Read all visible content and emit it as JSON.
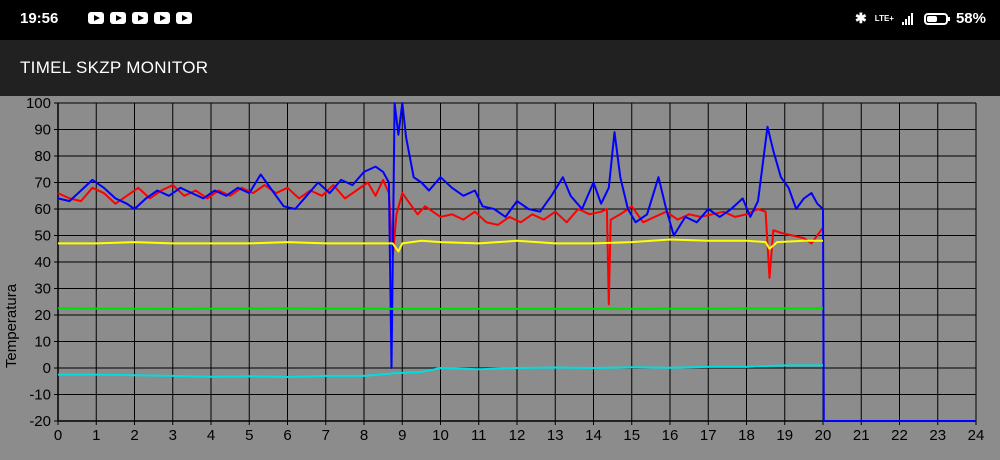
{
  "status_bar": {
    "time": "19:56",
    "notification_icons": [
      "youtube-icon",
      "youtube-icon",
      "youtube-icon",
      "youtube-icon",
      "youtube-icon"
    ],
    "network": "LTE+",
    "battery": "58%",
    "battery_level": 0.58
  },
  "app_bar": {
    "title": "TIMEL SKZP MONITOR"
  },
  "chart_data": {
    "type": "line",
    "title": "",
    "xlabel": "",
    "ylabel": "Temperatura",
    "xlim": [
      0,
      24
    ],
    "ylim": [
      -20,
      100
    ],
    "xticks": [
      0,
      1,
      2,
      3,
      4,
      5,
      6,
      7,
      8,
      9,
      10,
      11,
      12,
      13,
      14,
      15,
      16,
      17,
      18,
      19,
      20,
      21,
      22,
      23,
      24
    ],
    "yticks": [
      -20,
      -10,
      0,
      10,
      20,
      30,
      40,
      50,
      60,
      70,
      80,
      90,
      100
    ],
    "grid": true,
    "background": "#8c8c8c",
    "series": [
      {
        "color": "#ff0000",
        "points": [
          [
            0,
            66
          ],
          [
            0.3,
            64
          ],
          [
            0.6,
            63
          ],
          [
            0.9,
            68
          ],
          [
            1.2,
            66
          ],
          [
            1.5,
            62
          ],
          [
            1.8,
            65
          ],
          [
            2.1,
            68
          ],
          [
            2.4,
            64
          ],
          [
            2.7,
            67
          ],
          [
            3.0,
            69
          ],
          [
            3.3,
            65
          ],
          [
            3.6,
            67
          ],
          [
            3.9,
            64
          ],
          [
            4.2,
            67
          ],
          [
            4.5,
            65
          ],
          [
            4.8,
            68
          ],
          [
            5.1,
            66
          ],
          [
            5.4,
            69
          ],
          [
            5.7,
            66
          ],
          [
            6.0,
            68
          ],
          [
            6.3,
            64
          ],
          [
            6.6,
            67
          ],
          [
            6.9,
            65
          ],
          [
            7.2,
            69
          ],
          [
            7.5,
            64
          ],
          [
            7.8,
            67
          ],
          [
            8.1,
            70
          ],
          [
            8.3,
            65
          ],
          [
            8.5,
            71
          ],
          [
            8.65,
            66
          ],
          [
            8.75,
            42
          ],
          [
            8.85,
            58
          ],
          [
            9.0,
            66
          ],
          [
            9.2,
            62
          ],
          [
            9.4,
            58
          ],
          [
            9.6,
            61
          ],
          [
            9.8,
            59
          ],
          [
            10.0,
            57
          ],
          [
            10.3,
            58
          ],
          [
            10.6,
            56
          ],
          [
            10.9,
            59
          ],
          [
            11.2,
            55
          ],
          [
            11.5,
            54
          ],
          [
            11.8,
            57
          ],
          [
            12.1,
            55
          ],
          [
            12.4,
            58
          ],
          [
            12.7,
            56
          ],
          [
            13.0,
            59
          ],
          [
            13.3,
            55
          ],
          [
            13.6,
            60
          ],
          [
            13.9,
            58
          ],
          [
            14.2,
            59
          ],
          [
            14.35,
            60
          ],
          [
            14.4,
            24
          ],
          [
            14.45,
            56
          ],
          [
            14.7,
            58
          ],
          [
            15.0,
            61
          ],
          [
            15.3,
            55
          ],
          [
            15.6,
            57
          ],
          [
            15.9,
            59
          ],
          [
            16.2,
            56
          ],
          [
            16.5,
            58
          ],
          [
            16.8,
            57
          ],
          [
            17.1,
            58
          ],
          [
            17.4,
            59
          ],
          [
            17.7,
            57
          ],
          [
            18.0,
            58
          ],
          [
            18.3,
            60
          ],
          [
            18.5,
            59
          ],
          [
            18.6,
            34
          ],
          [
            18.7,
            52
          ],
          [
            18.9,
            51
          ],
          [
            19.2,
            50
          ],
          [
            19.5,
            49
          ],
          [
            19.7,
            47
          ],
          [
            19.9,
            51
          ],
          [
            20.0,
            53
          ]
        ]
      },
      {
        "color": "#0000ff",
        "points": [
          [
            0,
            64
          ],
          [
            0.3,
            63
          ],
          [
            0.6,
            67
          ],
          [
            0.9,
            71
          ],
          [
            1.2,
            68
          ],
          [
            1.5,
            64
          ],
          [
            1.8,
            62
          ],
          [
            2.0,
            60
          ],
          [
            2.3,
            64
          ],
          [
            2.6,
            67
          ],
          [
            2.9,
            65
          ],
          [
            3.2,
            68
          ],
          [
            3.5,
            66
          ],
          [
            3.8,
            64
          ],
          [
            4.1,
            67
          ],
          [
            4.4,
            65
          ],
          [
            4.7,
            68
          ],
          [
            5.0,
            66
          ],
          [
            5.3,
            73
          ],
          [
            5.6,
            67
          ],
          [
            5.9,
            61
          ],
          [
            6.2,
            60
          ],
          [
            6.5,
            65
          ],
          [
            6.8,
            70
          ],
          [
            7.1,
            66
          ],
          [
            7.4,
            71
          ],
          [
            7.7,
            69
          ],
          [
            8.0,
            74
          ],
          [
            8.3,
            76
          ],
          [
            8.5,
            74
          ],
          [
            8.65,
            70
          ],
          [
            8.72,
            0
          ],
          [
            8.8,
            100
          ],
          [
            8.9,
            88
          ],
          [
            9.0,
            100
          ],
          [
            9.1,
            87
          ],
          [
            9.3,
            72
          ],
          [
            9.5,
            70
          ],
          [
            9.7,
            67
          ],
          [
            10.0,
            72
          ],
          [
            10.3,
            68
          ],
          [
            10.6,
            65
          ],
          [
            10.9,
            67
          ],
          [
            11.1,
            61
          ],
          [
            11.4,
            60
          ],
          [
            11.7,
            57
          ],
          [
            12.0,
            63
          ],
          [
            12.3,
            60
          ],
          [
            12.6,
            59
          ],
          [
            12.9,
            65
          ],
          [
            13.2,
            72
          ],
          [
            13.4,
            65
          ],
          [
            13.7,
            60
          ],
          [
            14.0,
            70
          ],
          [
            14.2,
            62
          ],
          [
            14.4,
            68
          ],
          [
            14.55,
            89
          ],
          [
            14.7,
            72
          ],
          [
            14.9,
            60
          ],
          [
            15.1,
            55
          ],
          [
            15.4,
            58
          ],
          [
            15.7,
            72
          ],
          [
            15.9,
            60
          ],
          [
            16.1,
            50
          ],
          [
            16.4,
            57
          ],
          [
            16.7,
            55
          ],
          [
            17.0,
            60
          ],
          [
            17.3,
            57
          ],
          [
            17.6,
            60
          ],
          [
            17.9,
            64
          ],
          [
            18.1,
            57
          ],
          [
            18.3,
            63
          ],
          [
            18.55,
            91
          ],
          [
            18.7,
            82
          ],
          [
            18.9,
            72
          ],
          [
            19.1,
            68
          ],
          [
            19.3,
            60
          ],
          [
            19.5,
            64
          ],
          [
            19.7,
            66
          ],
          [
            19.85,
            62
          ],
          [
            20.0,
            60
          ],
          [
            20.02,
            -20
          ],
          [
            24,
            -20
          ]
        ]
      },
      {
        "color": "#ffff00",
        "points": [
          [
            0,
            47
          ],
          [
            1,
            47
          ],
          [
            2,
            47.5
          ],
          [
            3,
            47
          ],
          [
            4,
            47
          ],
          [
            5,
            47
          ],
          [
            6,
            47.5
          ],
          [
            7,
            47
          ],
          [
            8,
            47
          ],
          [
            8.75,
            47
          ],
          [
            8.9,
            44
          ],
          [
            9.0,
            47
          ],
          [
            9.5,
            48
          ],
          [
            10,
            47.5
          ],
          [
            11,
            47
          ],
          [
            12,
            48
          ],
          [
            13,
            47
          ],
          [
            14,
            47
          ],
          [
            15,
            47.5
          ],
          [
            16,
            48.5
          ],
          [
            17,
            48
          ],
          [
            18,
            48
          ],
          [
            18.5,
            47.5
          ],
          [
            18.6,
            45
          ],
          [
            18.8,
            47.5
          ],
          [
            19.5,
            48
          ],
          [
            20.0,
            48
          ]
        ]
      },
      {
        "color": "#00dd00",
        "points": [
          [
            0,
            22.5
          ],
          [
            3,
            22.3
          ],
          [
            6,
            22.5
          ],
          [
            9,
            22.3
          ],
          [
            12,
            22.3
          ],
          [
            15,
            22.3
          ],
          [
            18,
            22.5
          ],
          [
            20.0,
            22.5
          ]
        ]
      },
      {
        "color": "#00dddd",
        "points": [
          [
            0,
            -2.5
          ],
          [
            1,
            -2.5
          ],
          [
            2,
            -2.7
          ],
          [
            3,
            -3
          ],
          [
            4,
            -3.3
          ],
          [
            5,
            -3.1
          ],
          [
            6,
            -3.4
          ],
          [
            7,
            -3
          ],
          [
            8,
            -3
          ],
          [
            8.8,
            -2
          ],
          [
            9.5,
            -1.5
          ],
          [
            10,
            0
          ],
          [
            11,
            -0.5
          ],
          [
            12,
            0
          ],
          [
            13,
            0.2
          ],
          [
            14,
            0
          ],
          [
            15,
            0.3
          ],
          [
            16,
            0.1
          ],
          [
            17,
            0.4
          ],
          [
            18,
            0.4
          ],
          [
            19,
            1
          ],
          [
            20.0,
            1
          ]
        ]
      }
    ]
  }
}
